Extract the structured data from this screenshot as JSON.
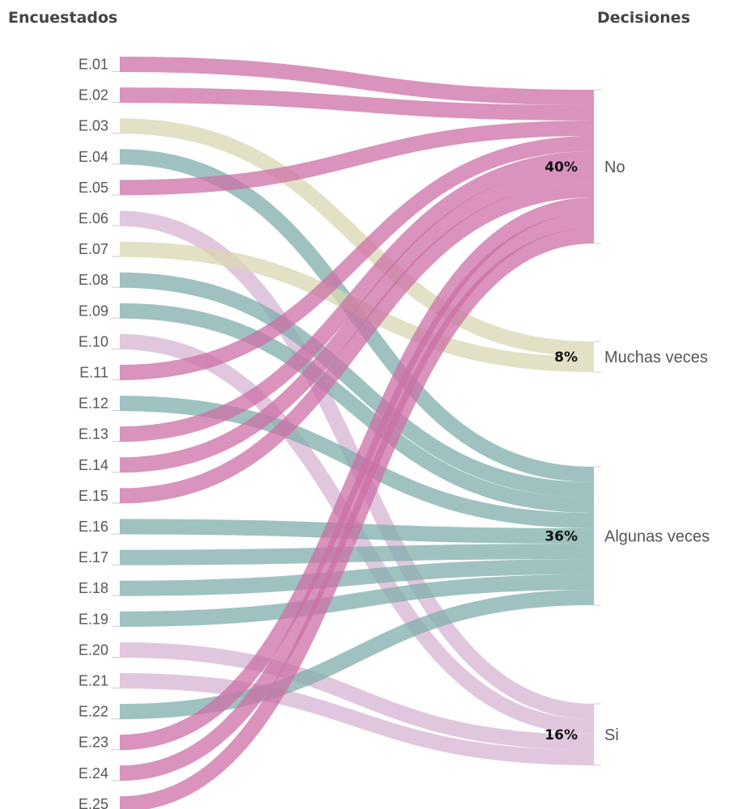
{
  "chart_data": {
    "type": "sankey",
    "source_header": "Encuestados",
    "target_header": "Decisiones",
    "categories": [
      {
        "id": "No",
        "label": "No",
        "percent": "40%",
        "color": "#cc6fa5"
      },
      {
        "id": "Muchas",
        "label": "Muchas veces",
        "percent": "8%",
        "color": "#d9d7b2"
      },
      {
        "id": "Algunas",
        "label": "Algunas veces",
        "percent": "36%",
        "color": "#7fadab"
      },
      {
        "id": "Si",
        "label": "Si",
        "percent": "16%",
        "color": "#d6b4d3"
      }
    ],
    "respondents": [
      {
        "label": "E.01",
        "decision": "No"
      },
      {
        "label": "E.02",
        "decision": "No"
      },
      {
        "label": "E.03",
        "decision": "Muchas"
      },
      {
        "label": "E.04",
        "decision": "Algunas"
      },
      {
        "label": "E.05",
        "decision": "No"
      },
      {
        "label": "E.06",
        "decision": "Si"
      },
      {
        "label": "E.07",
        "decision": "Muchas"
      },
      {
        "label": "E.08",
        "decision": "Algunas"
      },
      {
        "label": "E.09",
        "decision": "Algunas"
      },
      {
        "label": "E.10",
        "decision": "Si"
      },
      {
        "label": "E.11",
        "decision": "No"
      },
      {
        "label": "E.12",
        "decision": "Algunas"
      },
      {
        "label": "E.13",
        "decision": "No"
      },
      {
        "label": "E.14",
        "decision": "No"
      },
      {
        "label": "E.15",
        "decision": "No"
      },
      {
        "label": "E.16",
        "decision": "Algunas"
      },
      {
        "label": "E.17",
        "decision": "Algunas"
      },
      {
        "label": "E.18",
        "decision": "Algunas"
      },
      {
        "label": "E.19",
        "decision": "Algunas"
      },
      {
        "label": "E.20",
        "decision": "Si"
      },
      {
        "label": "E.21",
        "decision": "Si"
      },
      {
        "label": "E.22",
        "decision": "Algunas"
      },
      {
        "label": "E.23",
        "decision": "No"
      },
      {
        "label": "E.24",
        "decision": "No"
      },
      {
        "label": "E.25",
        "decision": "No"
      }
    ]
  }
}
